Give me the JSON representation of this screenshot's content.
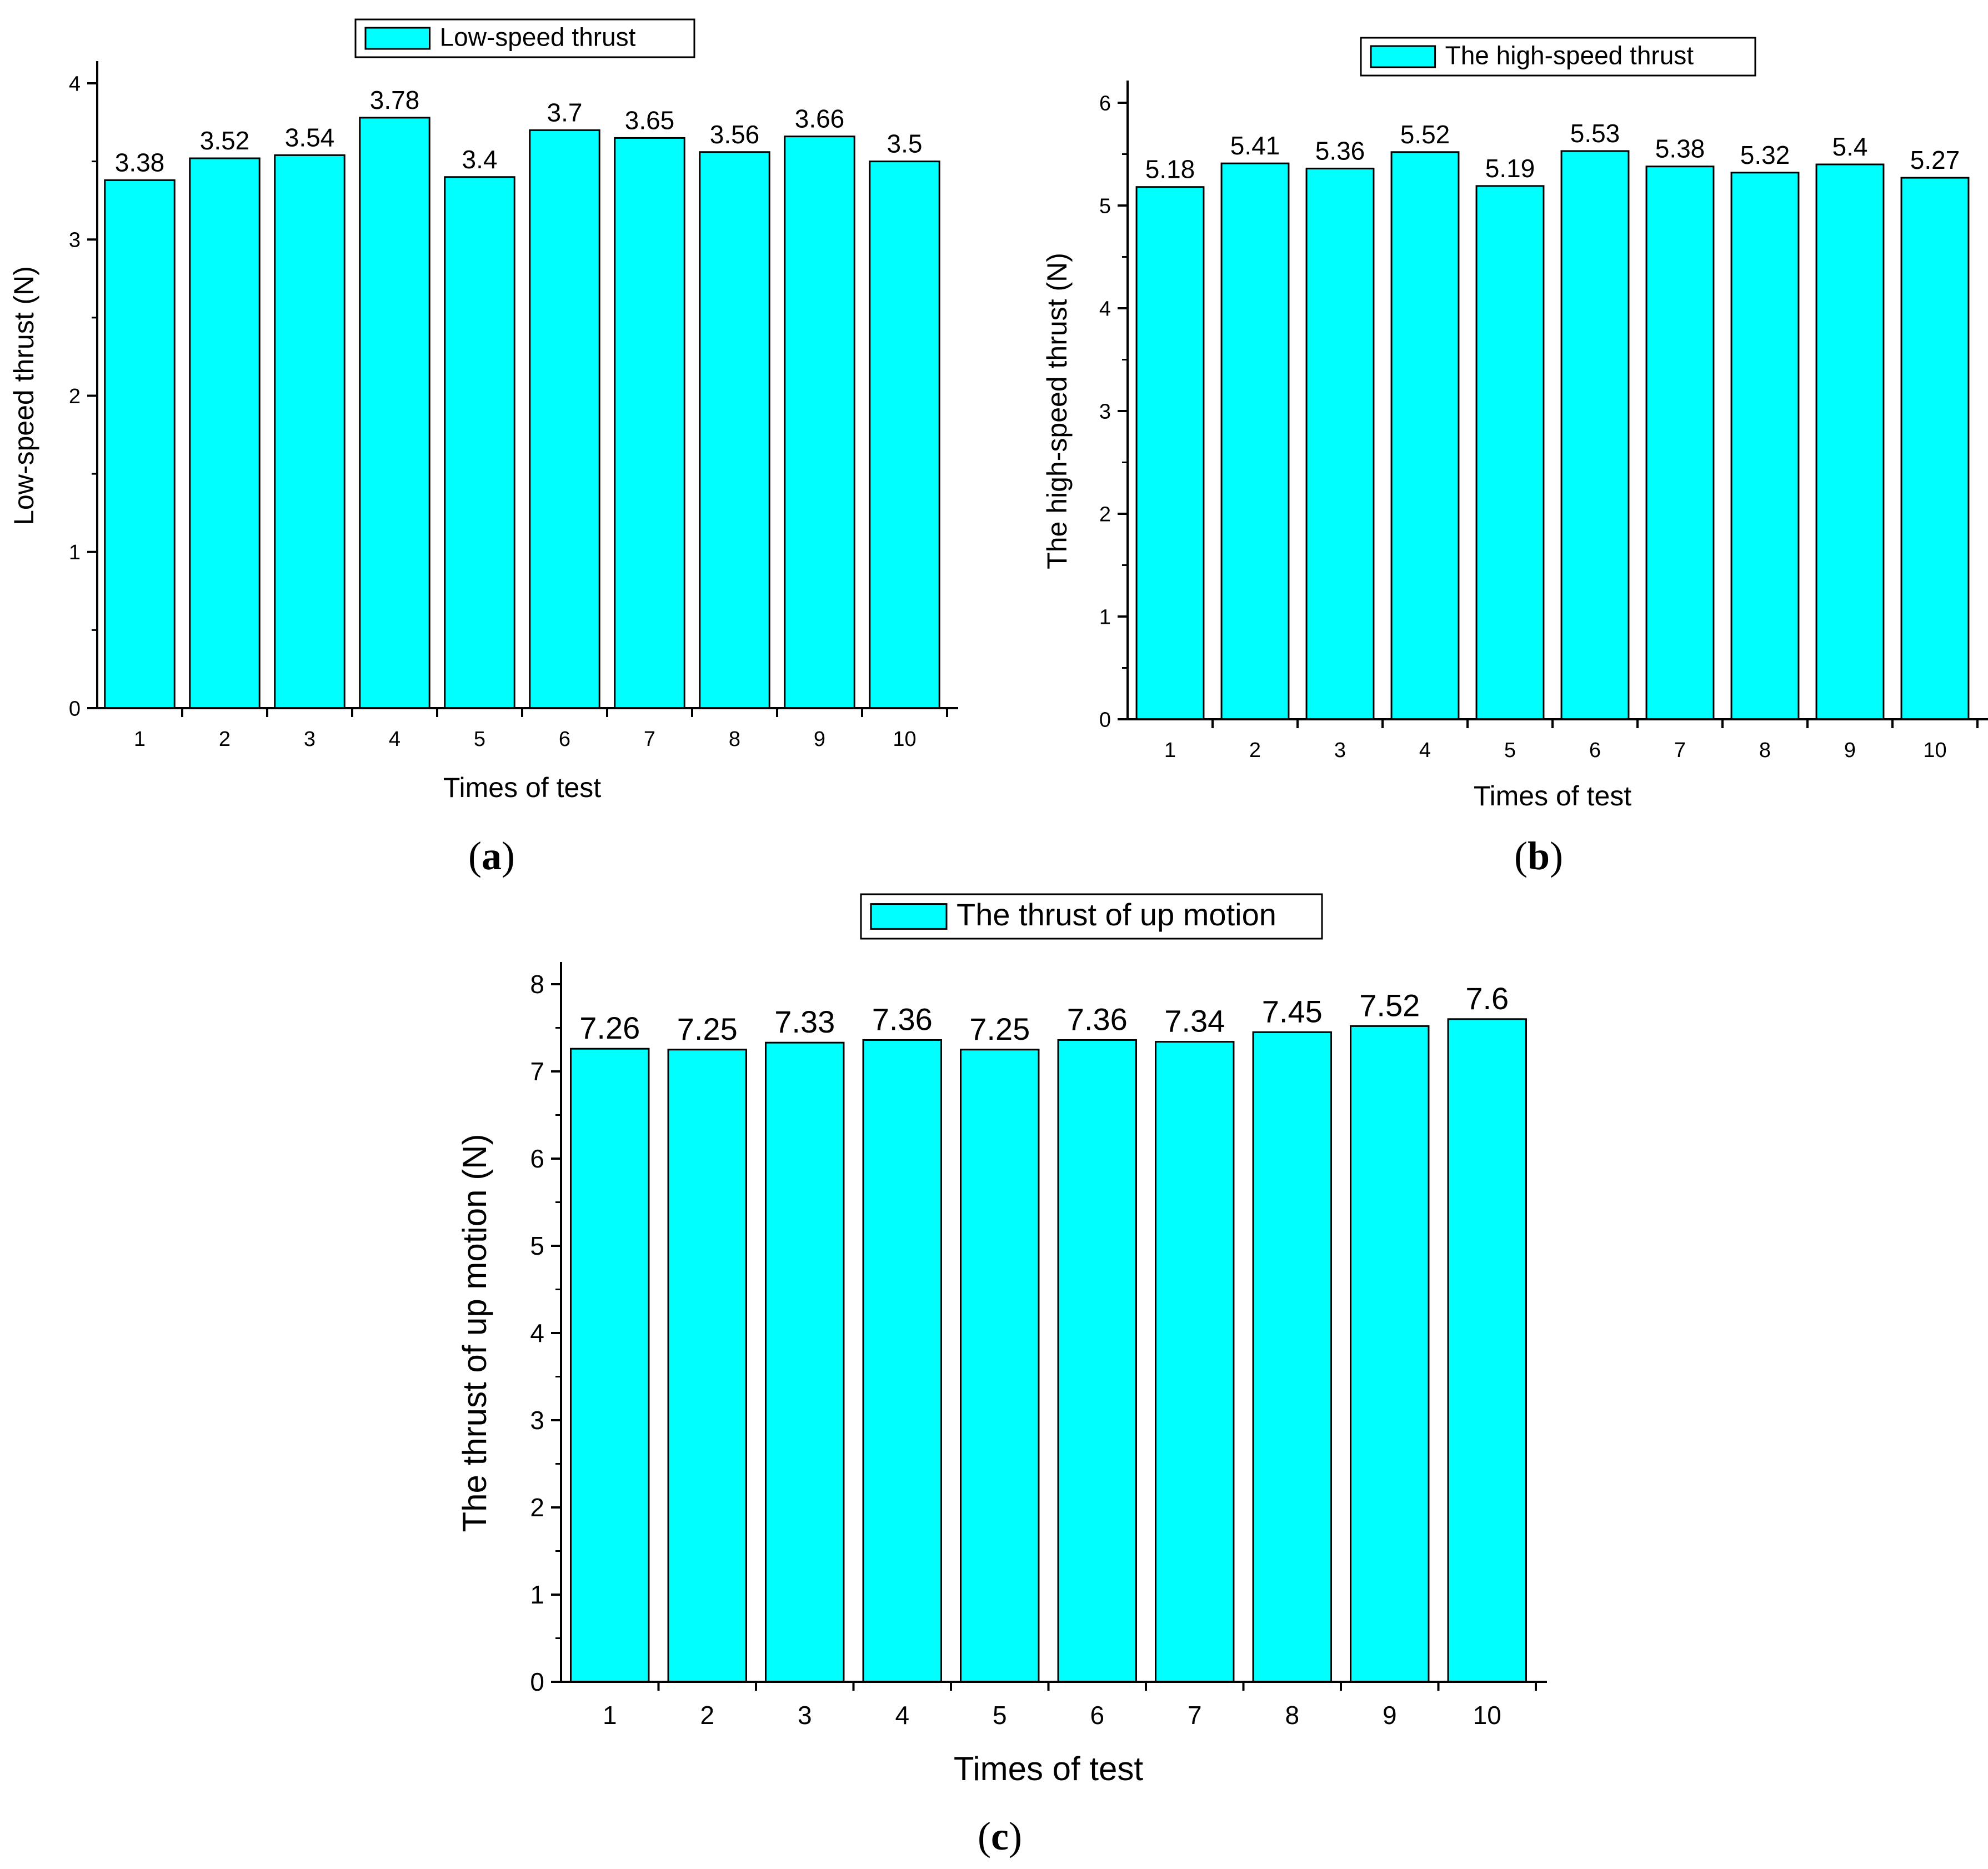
{
  "colors": {
    "bar_fill": "#00FFFF",
    "bar_stroke": "#000000",
    "axis": "#000000"
  },
  "panels": [
    {
      "letter": "a",
      "paren_open": "(",
      "paren_close": ")"
    },
    {
      "letter": "b",
      "paren_open": "(",
      "paren_close": ")"
    },
    {
      "letter": "c",
      "paren_open": "(",
      "paren_close": ")"
    }
  ],
  "chart_data": [
    {
      "type": "bar",
      "title": "",
      "legend": "Low-speed thrust",
      "legend_placement": "top-center",
      "xlabel": "Times of test",
      "ylabel": "Low-speed thrust (N)",
      "categories": [
        "1",
        "2",
        "3",
        "4",
        "5",
        "6",
        "7",
        "8",
        "9",
        "10"
      ],
      "values": [
        3.38,
        3.52,
        3.54,
        3.78,
        3.4,
        3.7,
        3.65,
        3.56,
        3.66,
        3.5
      ],
      "value_labels": [
        "3.38",
        "3.52",
        "3.54",
        "3.78",
        "3.4",
        "3.7",
        "3.65",
        "3.56",
        "3.66",
        "3.5"
      ],
      "yticks": [
        "0",
        "1",
        "2",
        "3",
        "4"
      ],
      "ylim": [
        0,
        4
      ],
      "grid": false
    },
    {
      "type": "bar",
      "title": "",
      "legend": "The high-speed thrust",
      "legend_placement": "top-center",
      "xlabel": "Times of test",
      "ylabel": "The high-speed thrust (N)",
      "categories": [
        "1",
        "2",
        "3",
        "4",
        "5",
        "6",
        "7",
        "8",
        "9",
        "10"
      ],
      "values": [
        5.18,
        5.41,
        5.36,
        5.52,
        5.19,
        5.53,
        5.38,
        5.32,
        5.4,
        5.27
      ],
      "value_labels": [
        "5.18",
        "5.41",
        "5.36",
        "5.52",
        "5.19",
        "5.53",
        "5.38",
        "5.32",
        "5.4",
        "5.27"
      ],
      "yticks": [
        "0",
        "1",
        "2",
        "3",
        "4",
        "5",
        "6"
      ],
      "ylim": [
        0,
        6
      ],
      "grid": false
    },
    {
      "type": "bar",
      "title": "",
      "legend": "The thrust of up motion",
      "legend_placement": "top-center",
      "xlabel": "Times of test",
      "ylabel": "The thrust of up motion (N)",
      "categories": [
        "1",
        "2",
        "3",
        "4",
        "5",
        "6",
        "7",
        "8",
        "9",
        "10"
      ],
      "values": [
        7.26,
        7.25,
        7.33,
        7.36,
        7.25,
        7.36,
        7.34,
        7.45,
        7.52,
        7.6
      ],
      "value_labels": [
        "7.26",
        "7.25",
        "7.33",
        "7.36",
        "7.25",
        "7.36",
        "7.34",
        "7.45",
        "7.52",
        "7.6"
      ],
      "yticks": [
        "0",
        "1",
        "2",
        "3",
        "4",
        "5",
        "6",
        "7",
        "8"
      ],
      "ylim": [
        0,
        8
      ],
      "grid": false
    }
  ]
}
